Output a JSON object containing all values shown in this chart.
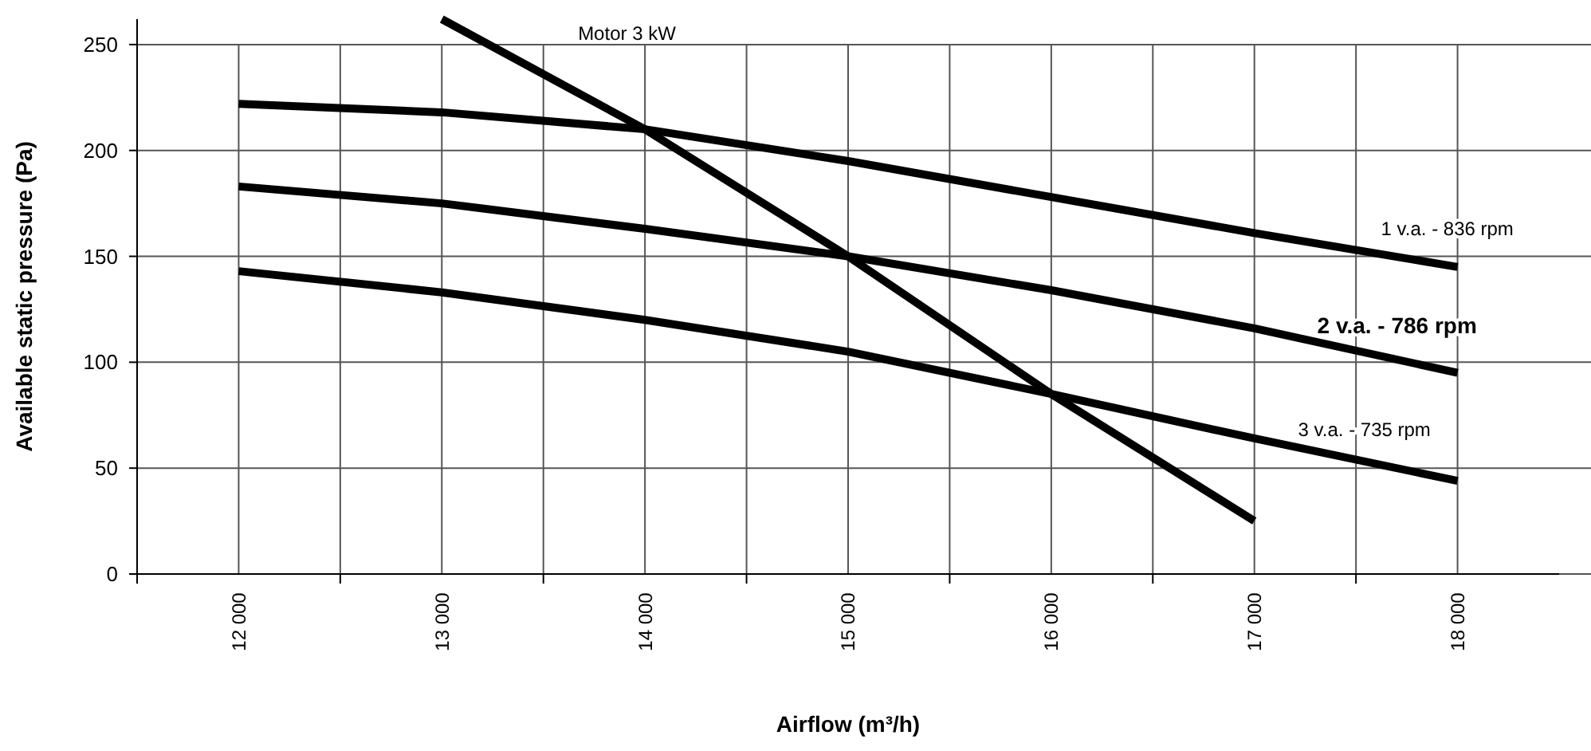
{
  "chart_data": {
    "type": "line",
    "xlabel": "Airflow (m³/h)",
    "ylabel": "Available static pressure (Pa)",
    "xlim": [
      11500,
      18500
    ],
    "xticks": [
      {
        "value": 11500,
        "label": null
      },
      {
        "value": 12000,
        "label": "12 000"
      },
      {
        "value": 12500,
        "label": null
      },
      {
        "value": 13000,
        "label": "13 000"
      },
      {
        "value": 13500,
        "label": null
      },
      {
        "value": 14000,
        "label": "14 000"
      },
      {
        "value": 14500,
        "label": null
      },
      {
        "value": 15000,
        "label": "15 000"
      },
      {
        "value": 15500,
        "label": null
      },
      {
        "value": 16000,
        "label": "16 000"
      },
      {
        "value": 16500,
        "label": null
      },
      {
        "value": 17000,
        "label": "17 000"
      },
      {
        "value": 17500,
        "label": null
      },
      {
        "value": 18000,
        "label": "18 000"
      }
    ],
    "ylim": [
      0,
      262
    ],
    "yticks": [
      0,
      50,
      100,
      150,
      200,
      250
    ],
    "grid": true,
    "marker": "none",
    "line_style": "solid",
    "series": [
      {
        "name": "1 v.a. - 836 rpm",
        "color": "#000000",
        "x": [
          12000,
          13000,
          14000,
          15000,
          16000,
          17000,
          18000
        ],
        "values": [
          222,
          218,
          210,
          195,
          178,
          161,
          145
        ]
      },
      {
        "name": "2 v.a. - 786 rpm",
        "color": "#000000",
        "x": [
          12000,
          13000,
          14000,
          15000,
          16000,
          17000,
          18000
        ],
        "values": [
          183,
          175,
          163,
          150,
          134,
          116,
          95
        ]
      },
      {
        "name": "3 v.a. - 735 rpm",
        "color": "#000000",
        "x": [
          12000,
          13000,
          14000,
          15000,
          16000,
          17000,
          18000
        ],
        "values": [
          143,
          133,
          120,
          105,
          85,
          64,
          44
        ]
      },
      {
        "name": "Motor 3 kW",
        "color": "#000000",
        "x": [
          13000,
          14000,
          15000,
          16000,
          17000
        ],
        "values": [
          262,
          210,
          150,
          85,
          25
        ]
      }
    ]
  }
}
